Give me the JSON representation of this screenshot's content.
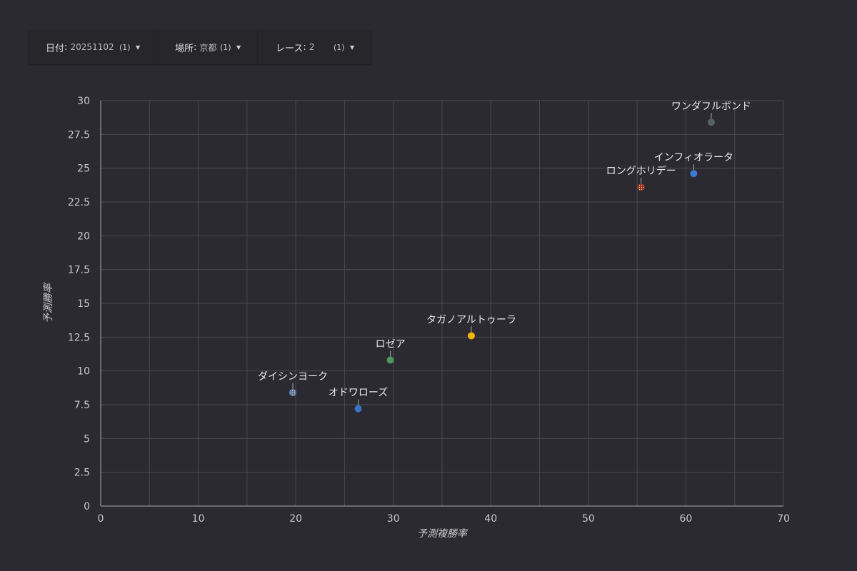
{
  "filters": [
    {
      "label": "日付",
      "value": "20251102",
      "count": "(1)"
    },
    {
      "label": "場所",
      "value": "京都",
      "count": "(1)"
    },
    {
      "label": "レース",
      "value": "2",
      "count": "(1)"
    }
  ],
  "chart_data": {
    "type": "scatter",
    "xlabel": "予測複勝率",
    "ylabel": "予測勝率",
    "xlim": [
      0,
      70
    ],
    "ylim": [
      0,
      30
    ],
    "xticks": [
      0,
      10,
      20,
      30,
      40,
      50,
      60,
      70
    ],
    "yticks": [
      0,
      2.5,
      5,
      7.5,
      10,
      12.5,
      15,
      17.5,
      20,
      22.5,
      25,
      27.5,
      30
    ],
    "grid": true,
    "points": [
      {
        "label": "ワンダフルボンド",
        "x": 62.6,
        "y": 28.4,
        "color": "#56615f"
      },
      {
        "label": "インフィオラータ",
        "x": 60.8,
        "y": 24.6,
        "color": "#3a7ad0"
      },
      {
        "label": "ロングホリデー",
        "x": 55.4,
        "y": 23.6,
        "color": "#8c2b2b",
        "pattern": "dots"
      },
      {
        "label": "タガノアルトゥーラ",
        "x": 38.0,
        "y": 12.6,
        "color": "#f5b400"
      },
      {
        "label": "ロゼア",
        "x": 29.7,
        "y": 10.8,
        "color": "#4e9a5a"
      },
      {
        "label": "ダイシンヨーク",
        "x": 19.7,
        "y": 8.4,
        "color": "#4a78b8",
        "pattern": "dots"
      },
      {
        "label": "オドワローズ",
        "x": 26.4,
        "y": 7.2,
        "color": "#3a72c4"
      }
    ]
  }
}
